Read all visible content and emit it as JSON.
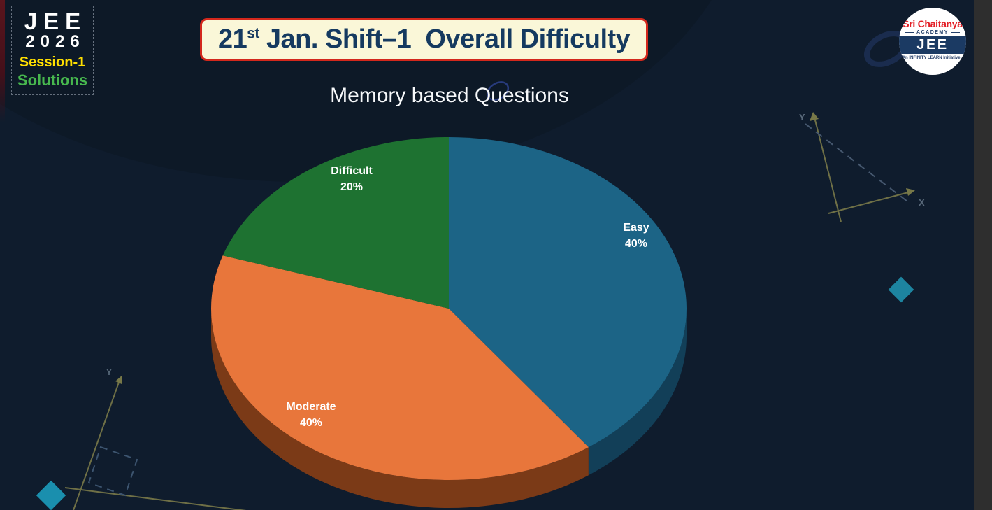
{
  "badge": {
    "line1": "JEE",
    "line2": "2026",
    "line3": "Session-1",
    "line4": "Solutions"
  },
  "header": {
    "title_num": "21",
    "title_sup": "st",
    "title_rest": " Jan. Shift–1  Overall Difficulty"
  },
  "logo": {
    "brand": "Sri Chaitanya",
    "academy": "ACADEMY",
    "exam": "JEE",
    "tagline": "An INFINITY LEARN Initiative",
    "tagline_arrow": "›"
  },
  "chart_data": {
    "type": "pie",
    "style": "3d",
    "title": "Memory based Questions",
    "labels": [
      "Easy",
      "Moderate",
      "Difficult"
    ],
    "values": [
      40,
      40,
      20
    ],
    "value_labels": [
      "40%",
      "40%",
      "20%"
    ],
    "colors": [
      "#1c6486",
      "#e8763b",
      "#1e7231"
    ],
    "side_colors": [
      "#123f58",
      "#7b3a17",
      "#124a20"
    ],
    "start_angle": "top",
    "direction": "clockwise",
    "legend": "none",
    "label_position": "inside"
  },
  "decor": {
    "axis_label_x": "X",
    "axis_label_y": "Y",
    "diamond_color_right": "#1d84a0",
    "diamond_color_left": "#1a8fae",
    "sketch_line_color": "#6f7046",
    "dash_line_color": "#46586f"
  }
}
